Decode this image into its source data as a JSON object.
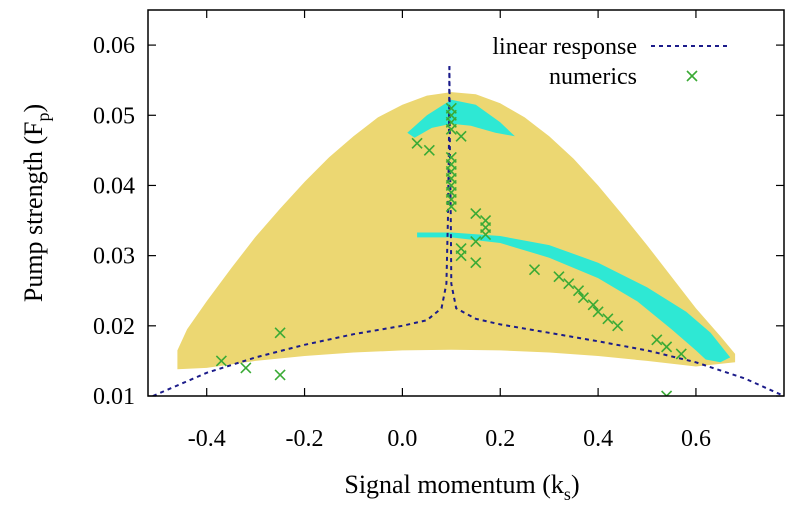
{
  "chart_data": {
    "type": "scatter",
    "xlabel": "Signal momentum (k",
    "xlabel_sub": "s",
    "xlabel_end": ")",
    "ylabel": "Pump strength (F",
    "ylabel_sub": "p",
    "ylabel_end": ")",
    "xlim": [
      -0.52,
      0.78
    ],
    "ylim": [
      0.01,
      0.065
    ],
    "x_ticks": [
      -0.4,
      -0.2,
      0.0,
      0.2,
      0.4,
      0.6
    ],
    "x_tick_labels": [
      "-0.4",
      "-0.2",
      "0.0",
      "0.2",
      "0.4",
      "0.6"
    ],
    "y_ticks": [
      0.01,
      0.02,
      0.03,
      0.04,
      0.05,
      0.06
    ],
    "y_tick_labels": [
      "0.01",
      "0.02",
      "0.03",
      "0.04",
      "0.05",
      "0.06"
    ],
    "colors": {
      "yellow_region": "#ecd772",
      "cyan_region": "#2ee8d4",
      "linear_response": "#1b1b8a",
      "numerics": "#3aaa35"
    },
    "regions": {
      "yellow_top": [
        [
          -0.46,
          0.0165
        ],
        [
          -0.44,
          0.0195
        ],
        [
          -0.4,
          0.0235
        ],
        [
          -0.35,
          0.0282
        ],
        [
          -0.3,
          0.0327
        ],
        [
          -0.25,
          0.0367
        ],
        [
          -0.2,
          0.0405
        ],
        [
          -0.15,
          0.044
        ],
        [
          -0.1,
          0.047
        ],
        [
          -0.05,
          0.0497
        ],
        [
          0.0,
          0.0515
        ],
        [
          0.05,
          0.0528
        ],
        [
          0.1,
          0.0533
        ],
        [
          0.15,
          0.053
        ],
        [
          0.2,
          0.0517
        ],
        [
          0.25,
          0.0497
        ],
        [
          0.3,
          0.047
        ],
        [
          0.35,
          0.0438
        ],
        [
          0.4,
          0.04
        ],
        [
          0.45,
          0.0358
        ],
        [
          0.5,
          0.0315
        ],
        [
          0.55,
          0.027
        ],
        [
          0.6,
          0.0225
        ],
        [
          0.65,
          0.0185
        ],
        [
          0.68,
          0.016
        ]
      ],
      "yellow_bottom": [
        [
          0.68,
          0.0148
        ],
        [
          0.6,
          0.0142
        ],
        [
          0.5,
          0.015
        ],
        [
          0.4,
          0.0157
        ],
        [
          0.3,
          0.0162
        ],
        [
          0.2,
          0.0165
        ],
        [
          0.1,
          0.0166
        ],
        [
          0.0,
          0.0165
        ],
        [
          -0.1,
          0.0162
        ],
        [
          -0.2,
          0.0157
        ],
        [
          -0.3,
          0.015
        ],
        [
          -0.4,
          0.014
        ],
        [
          -0.46,
          0.0138
        ]
      ],
      "cyan_upper": [
        [
          0.01,
          0.0475
        ],
        [
          0.05,
          0.05
        ],
        [
          0.1,
          0.0522
        ],
        [
          0.15,
          0.0515
        ],
        [
          0.2,
          0.049
        ],
        [
          0.23,
          0.047
        ],
        [
          0.19,
          0.0475
        ],
        [
          0.14,
          0.0485
        ],
        [
          0.1,
          0.0488
        ],
        [
          0.06,
          0.0482
        ],
        [
          0.025,
          0.0468
        ]
      ],
      "cyan_lower": [
        [
          0.03,
          0.0333
        ],
        [
          0.1,
          0.0333
        ],
        [
          0.2,
          0.0328
        ],
        [
          0.3,
          0.0315
        ],
        [
          0.4,
          0.029
        ],
        [
          0.5,
          0.0255
        ],
        [
          0.58,
          0.022
        ],
        [
          0.63,
          0.019
        ],
        [
          0.67,
          0.0155
        ],
        [
          0.65,
          0.0148
        ],
        [
          0.62,
          0.0152
        ],
        [
          0.6,
          0.0165
        ],
        [
          0.55,
          0.0195
        ],
        [
          0.48,
          0.0235
        ],
        [
          0.4,
          0.0268
        ],
        [
          0.3,
          0.0297
        ],
        [
          0.2,
          0.0318
        ],
        [
          0.1,
          0.0326
        ],
        [
          0.03,
          0.0326
        ]
      ]
    },
    "series": [
      {
        "name": "linear response",
        "style": "dashed-line",
        "segments": [
          [
            [
              -0.51,
              0.01
            ],
            [
              -0.4,
              0.0133
            ],
            [
              -0.3,
              0.0155
            ],
            [
              -0.2,
              0.0173
            ],
            [
              -0.1,
              0.0188
            ],
            [
              0.0,
              0.02
            ],
            [
              0.05,
              0.0208
            ],
            [
              0.08,
              0.0225
            ],
            [
              0.09,
              0.026
            ],
            [
              0.093,
              0.035
            ],
            [
              0.095,
              0.045
            ],
            [
              0.096,
              0.057
            ]
          ],
          [
            [
              0.096,
              0.057
            ],
            [
              0.097,
              0.045
            ],
            [
              0.099,
              0.035
            ],
            [
              0.1,
              0.026
            ],
            [
              0.11,
              0.0225
            ],
            [
              0.15,
              0.021
            ],
            [
              0.2,
              0.0202
            ],
            [
              0.3,
              0.019
            ],
            [
              0.4,
              0.0178
            ],
            [
              0.5,
              0.0165
            ],
            [
              0.6,
              0.0148
            ],
            [
              0.7,
              0.0125
            ],
            [
              0.78,
              0.01
            ]
          ]
        ]
      },
      {
        "name": "numerics",
        "style": "x-marker",
        "points": [
          [
            -0.37,
            0.015
          ],
          [
            -0.32,
            0.014
          ],
          [
            -0.25,
            0.019
          ],
          [
            -0.25,
            0.013
          ],
          [
            0.03,
            0.046
          ],
          [
            0.055,
            0.045
          ],
          [
            0.1,
            0.051
          ],
          [
            0.1,
            0.05
          ],
          [
            0.1,
            0.049
          ],
          [
            0.1,
            0.048
          ],
          [
            0.1,
            0.044
          ],
          [
            0.1,
            0.043
          ],
          [
            0.1,
            0.042
          ],
          [
            0.1,
            0.041
          ],
          [
            0.1,
            0.04
          ],
          [
            0.1,
            0.039
          ],
          [
            0.1,
            0.038
          ],
          [
            0.1,
            0.037
          ],
          [
            0.12,
            0.047
          ],
          [
            0.12,
            0.031
          ],
          [
            0.12,
            0.03
          ],
          [
            0.15,
            0.036
          ],
          [
            0.15,
            0.032
          ],
          [
            0.15,
            0.029
          ],
          [
            0.17,
            0.035
          ],
          [
            0.17,
            0.034
          ],
          [
            0.17,
            0.033
          ],
          [
            0.27,
            0.028
          ],
          [
            0.32,
            0.027
          ],
          [
            0.34,
            0.026
          ],
          [
            0.36,
            0.025
          ],
          [
            0.37,
            0.024
          ],
          [
            0.39,
            0.023
          ],
          [
            0.4,
            0.022
          ],
          [
            0.42,
            0.021
          ],
          [
            0.44,
            0.02
          ],
          [
            0.52,
            0.018
          ],
          [
            0.54,
            0.017
          ],
          [
            0.57,
            0.016
          ],
          [
            0.54,
            0.01
          ]
        ]
      }
    ],
    "legend": {
      "position": "top-right",
      "entries": [
        "linear response",
        "numerics"
      ]
    }
  }
}
